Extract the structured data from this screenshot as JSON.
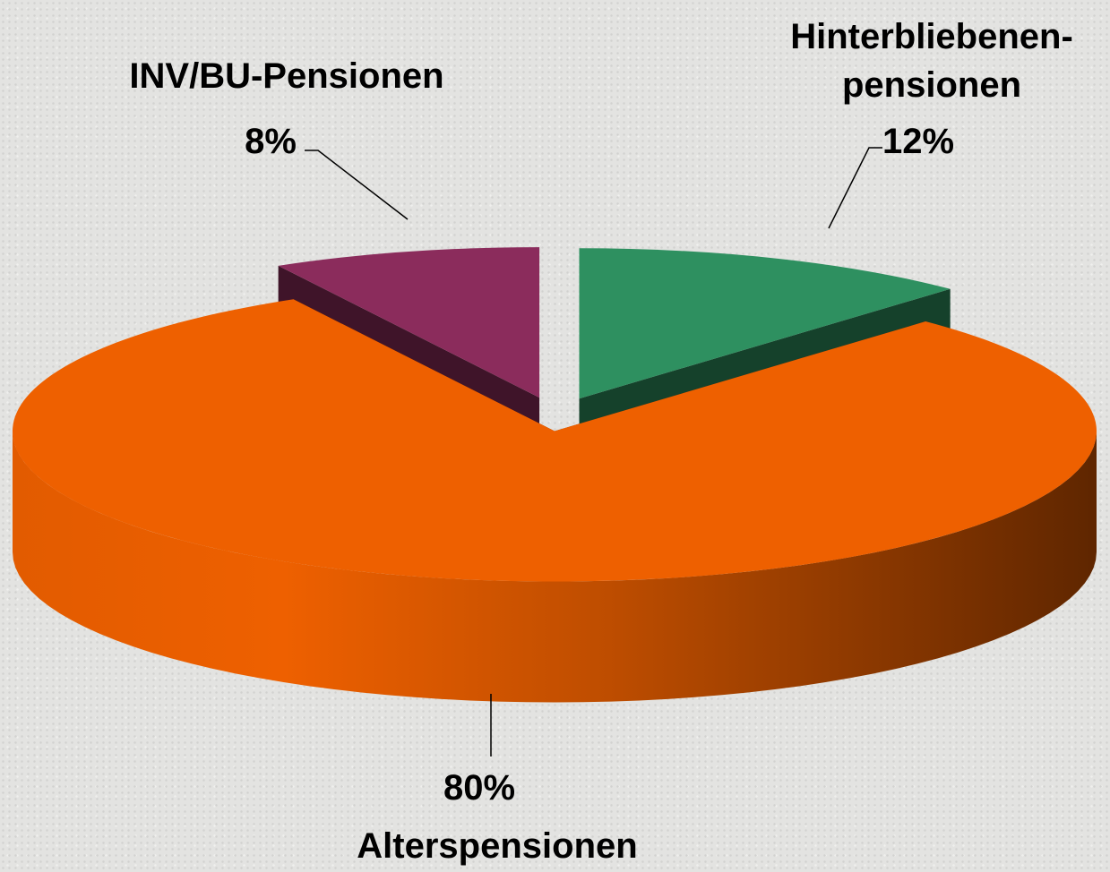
{
  "chart_data": {
    "type": "pie",
    "categories": [
      "Alterspensionen",
      "Hinterbliebenen-\npensionen",
      "INV/BU-Pensionen"
    ],
    "values": [
      80,
      12,
      8
    ],
    "value_labels": [
      "80%",
      "12%",
      "8%"
    ],
    "colors": [
      "#ee6000",
      "#2e9060",
      "#8b2c5c"
    ]
  }
}
